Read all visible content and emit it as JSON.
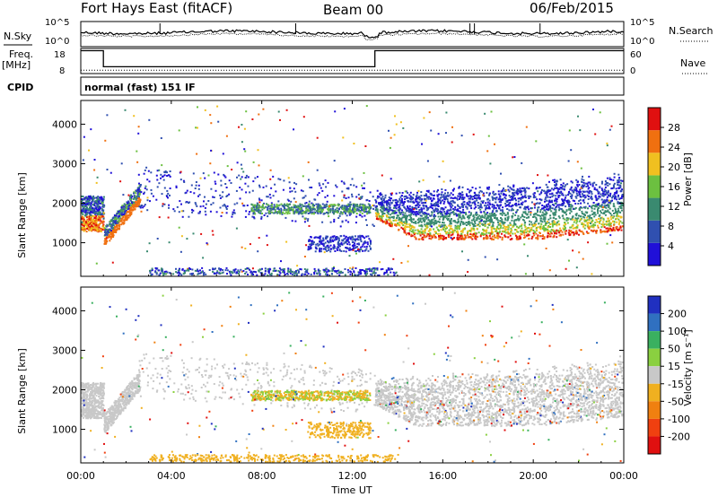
{
  "header": {
    "title_left": "Fort Hays East (fitACF)",
    "title_mid": "Beam 00",
    "title_right": "06/Feb/2015"
  },
  "chart_data": [
    {
      "type": "line",
      "panel": "noise",
      "left_label": "N.Sky",
      "right_label": "N.Search",
      "left_ticks": [
        "10^5",
        "10^0"
      ],
      "right_ticks": [
        "10^5",
        "10^0"
      ]
    },
    {
      "type": "line",
      "panel": "frequency",
      "left_label_top": "Freq.",
      "left_label_bottom": "[MHz]",
      "right_label": "Nave",
      "left_ticks": [
        "18",
        "8"
      ],
      "right_ticks": [
        "60",
        "0"
      ],
      "frequency_series": [
        {
          "x": 0.0,
          "y": 18
        },
        {
          "x": 1.0,
          "y": 18
        },
        {
          "x": 1.0,
          "y": 11
        },
        {
          "x": 13.0,
          "y": 11
        },
        {
          "x": 13.0,
          "y": 18
        },
        {
          "x": 24.0,
          "y": 18
        }
      ],
      "nave_level": 8
    },
    {
      "type": "text",
      "panel": "cpid",
      "label": "CPID",
      "value": "normal (fast) 151 IF"
    },
    {
      "type": "heatmap",
      "panel": "power",
      "ylabel": "Slant Range [km]",
      "yticks": [
        "1000",
        "2000",
        "3000",
        "4000"
      ],
      "yvalues": [
        1000,
        2000,
        3000,
        4000
      ],
      "ylim": [
        150,
        4600
      ],
      "xlim": [
        0,
        24
      ],
      "colorbar": {
        "label": "Power [dB]",
        "ticks": [
          "4",
          "8",
          "12",
          "16",
          "20",
          "24",
          "28"
        ],
        "colors": [
          "#2010d8",
          "#3050b0",
          "#3a8a70",
          "#6cc040",
          "#f0c020",
          "#f07010",
          "#e01010"
        ]
      }
    },
    {
      "type": "heatmap",
      "panel": "velocity",
      "ylabel": "Slant Range [km]",
      "yticks": [
        "1000",
        "2000",
        "3000",
        "4000"
      ],
      "yvalues": [
        1000,
        2000,
        3000,
        4000
      ],
      "ylim": [
        150,
        4600
      ],
      "xlim": [
        0,
        24
      ],
      "colorbar": {
        "label": "Velocity [m s⁻¹]",
        "ticks": [
          "200",
          "100",
          "50",
          "15",
          "-15",
          "-50",
          "-100",
          "-200"
        ],
        "colors": [
          "#2030c0",
          "#3070c0",
          "#3ab060",
          "#8ad040",
          "#c8c8c8",
          "#f0b020",
          "#f08010",
          "#f04010",
          "#e01010"
        ]
      }
    }
  ],
  "xaxis": {
    "label": "Time UT",
    "ticks": [
      "00:00",
      "04:00",
      "08:00",
      "12:00",
      "16:00",
      "20:00",
      "00:00"
    ],
    "hours": [
      0,
      4,
      8,
      12,
      16,
      20,
      24
    ]
  }
}
